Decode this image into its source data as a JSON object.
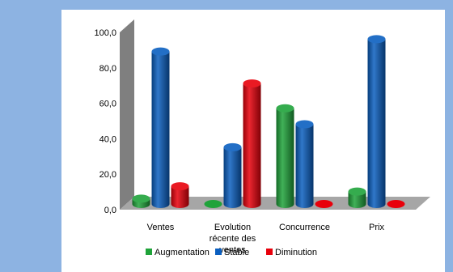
{
  "chart_data": {
    "type": "bar",
    "categories": [
      "Ventes",
      "Evolution récente des ventes",
      "Concurrence",
      "Prix"
    ],
    "category_label_lines": [
      [
        "Ventes"
      ],
      [
        "Evolution",
        "récente des",
        "ventes"
      ],
      [
        "Concurrence"
      ],
      [
        "Prix"
      ]
    ],
    "series": [
      {
        "name": "Augmentation",
        "values": [
          3,
          0,
          54,
          7
        ],
        "color": "#1fa33a"
      },
      {
        "name": "Stable",
        "values": [
          86,
          32,
          45,
          93
        ],
        "color": "#0b5fc0"
      },
      {
        "name": "Diminution",
        "values": [
          10,
          68,
          0,
          0
        ],
        "color": "#e8000b"
      }
    ],
    "yticks": [
      "0,0",
      "20,0",
      "40,0",
      "60,0",
      "80,0",
      "100,0"
    ],
    "ylim": [
      0,
      100
    ],
    "title": "",
    "xlabel": "",
    "ylabel": "",
    "legend_position": "bottom",
    "three_d": true
  }
}
